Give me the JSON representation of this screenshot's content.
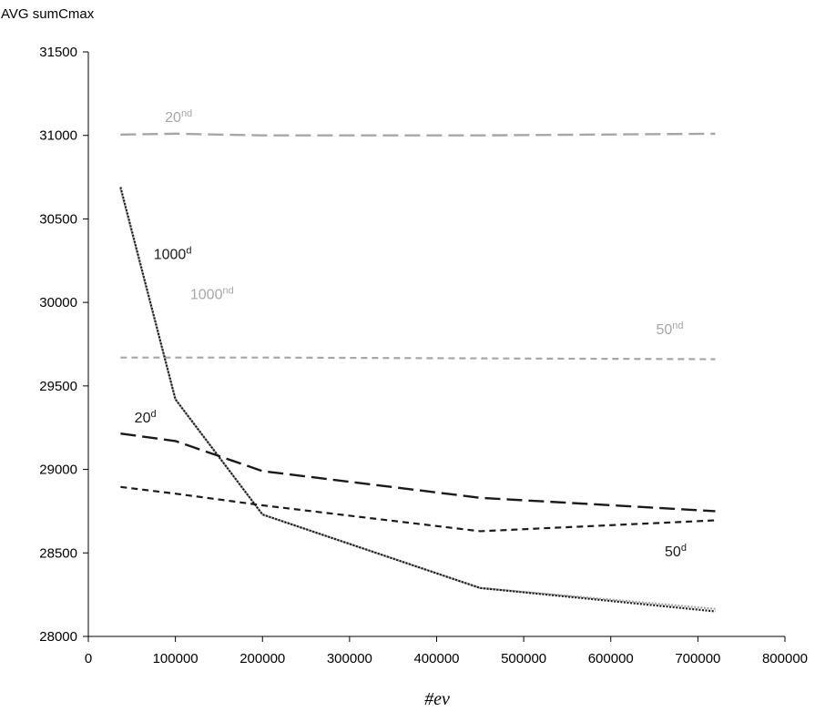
{
  "chart_data": {
    "type": "line",
    "title": "",
    "ylabel": "AVG sumCmax",
    "xlabel": "#ev",
    "xlim": [
      0,
      800000
    ],
    "ylim": [
      28000,
      31500
    ],
    "x_ticks": [
      0,
      100000,
      200000,
      300000,
      400000,
      500000,
      600000,
      700000,
      800000
    ],
    "y_ticks": [
      28000,
      28500,
      29000,
      29500,
      30000,
      30500,
      31000,
      31500
    ],
    "grid": false,
    "legend": "none",
    "series": [
      {
        "label_base": "20",
        "label_sup": "nd",
        "color": "#a6a6a6",
        "dash": "long-dash",
        "x": [
          37000,
          100000,
          200000,
          450000,
          720000
        ],
        "y": [
          31005,
          31010,
          31000,
          31000,
          31010
        ],
        "label_anchor": [
          88000,
          31080
        ]
      },
      {
        "label_base": "50",
        "label_sup": "nd",
        "color": "#a6a6a6",
        "dash": "short-dash",
        "x": [
          37000,
          100000,
          200000,
          450000,
          720000
        ],
        "y": [
          29670,
          29670,
          29670,
          29665,
          29660
        ],
        "label_anchor": [
          652000,
          29810
        ]
      },
      {
        "label_base": "1000",
        "label_sup": "nd",
        "color": "#a6a6a6",
        "dash": "dot",
        "x": [
          37000,
          100000,
          200000,
          450000,
          720000
        ],
        "y": [
          30680,
          29420,
          28730,
          28290,
          28165
        ],
        "label_anchor": [
          117000,
          30020
        ]
      },
      {
        "label_base": "20",
        "label_sup": "d",
        "color": "#1a1a1a",
        "dash": "long-dash",
        "x": [
          37000,
          100000,
          200000,
          450000,
          720000
        ],
        "y": [
          29215,
          29170,
          28990,
          28830,
          28750
        ],
        "label_anchor": [
          53000,
          29280
        ]
      },
      {
        "label_base": "50",
        "label_sup": "d",
        "color": "#1a1a1a",
        "dash": "short-dash",
        "x": [
          37000,
          100000,
          200000,
          450000,
          720000
        ],
        "y": [
          28895,
          28855,
          28785,
          28630,
          28695
        ],
        "label_anchor": [
          662000,
          28480
        ]
      },
      {
        "label_base": "1000",
        "label_sup": "d",
        "color": "#1a1a1a",
        "dash": "dot",
        "x": [
          37000,
          100000,
          200000,
          450000,
          720000
        ],
        "y": [
          30690,
          29420,
          28730,
          28290,
          28150
        ],
        "label_anchor": [
          75000,
          30260
        ]
      }
    ]
  }
}
